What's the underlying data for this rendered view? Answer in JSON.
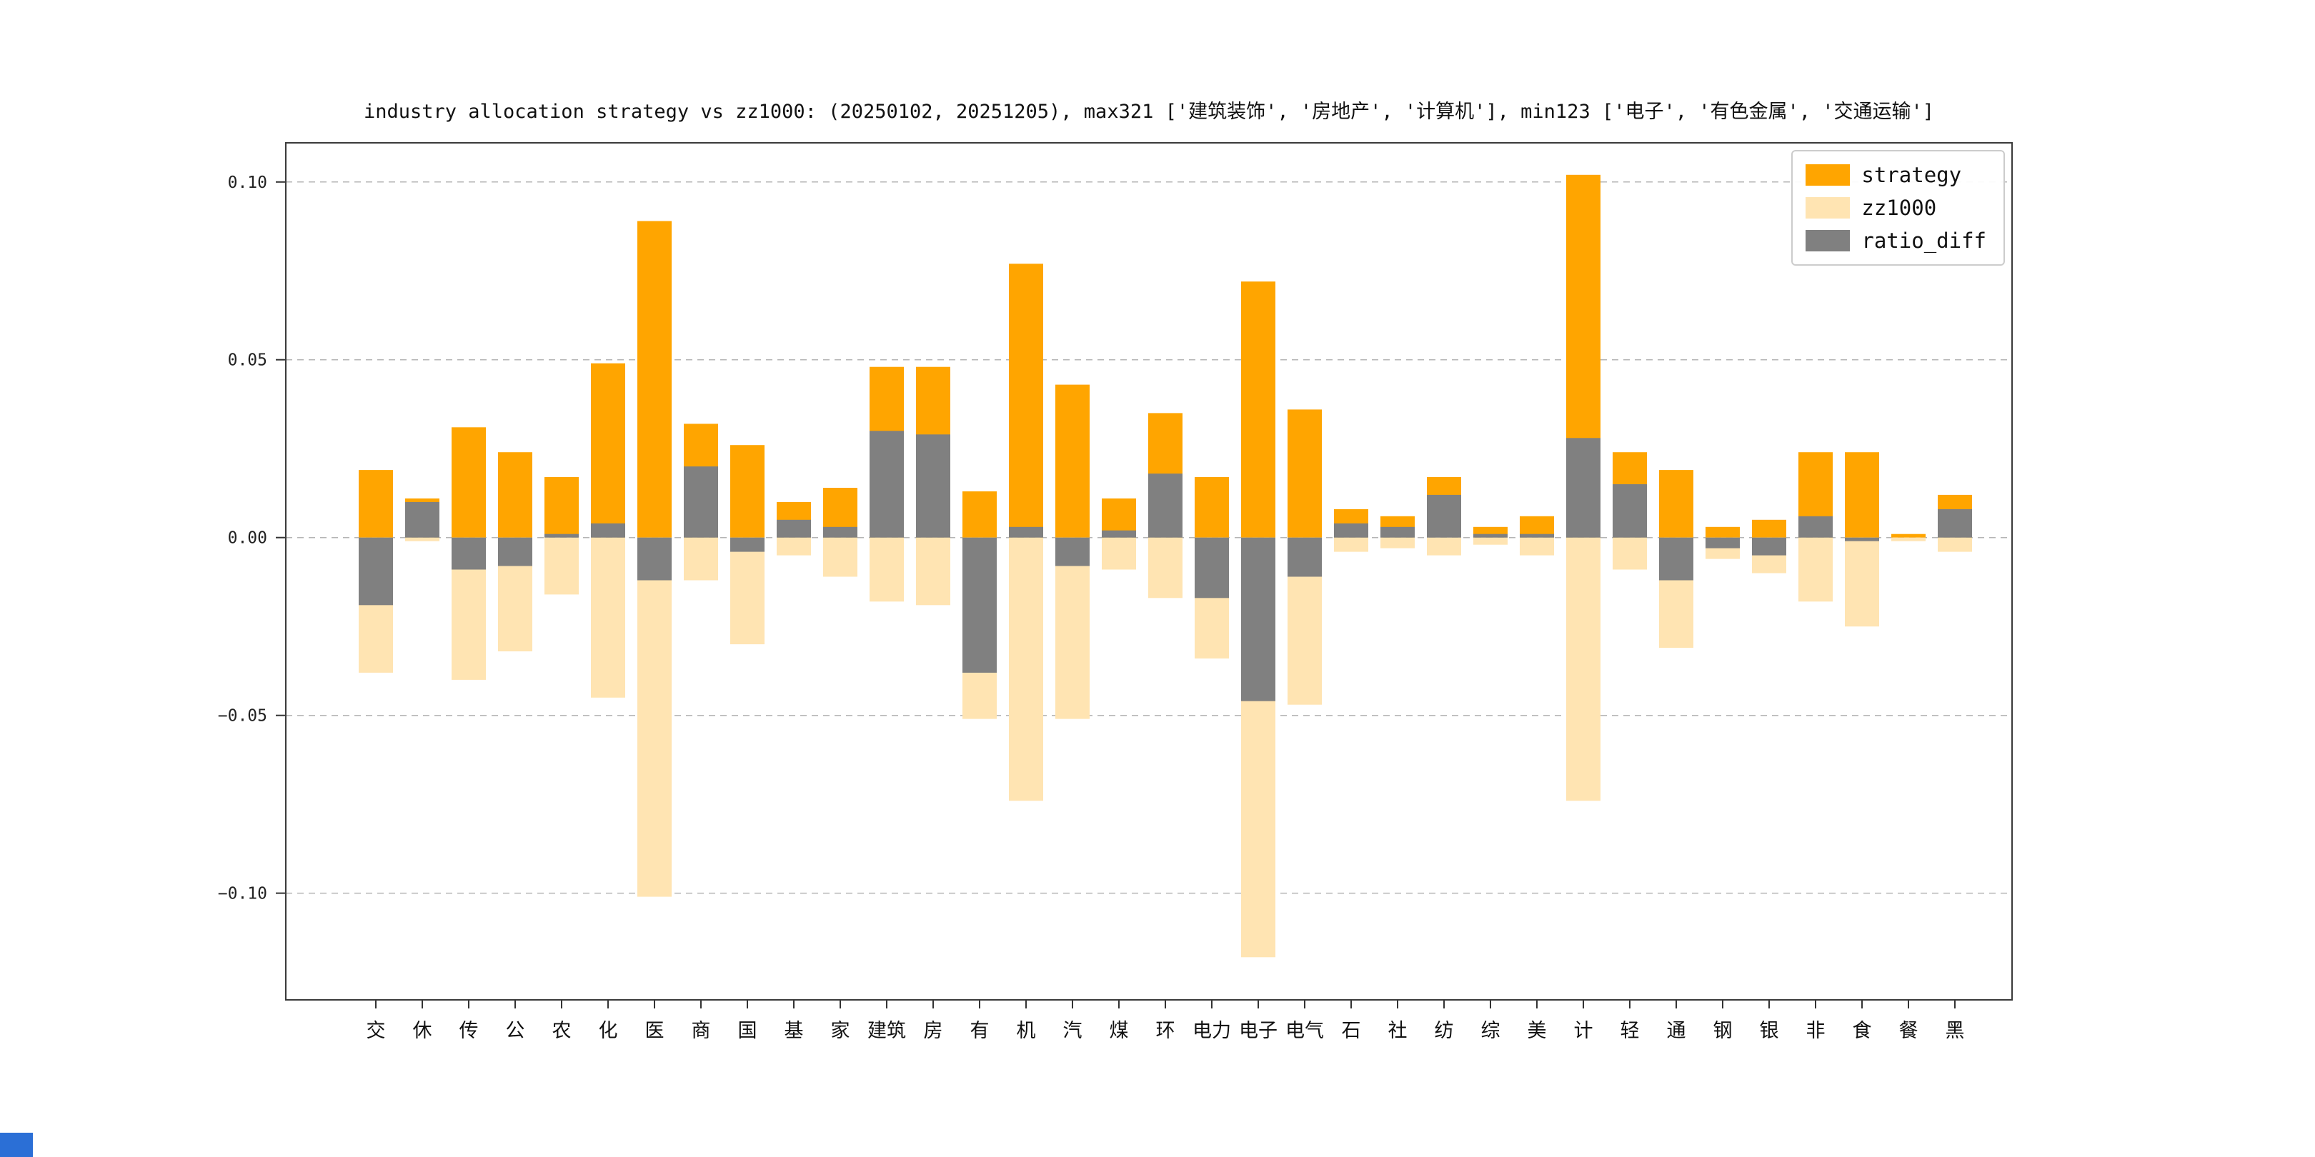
{
  "page": {
    "background": "#ffffff"
  },
  "chart_data": {
    "type": "bar",
    "title": "industry allocation strategy vs zz1000: (20250102, 20251205), max321 ['建筑装饰', '房地产', '计算机'], min123 ['电子', '有色金属', '交通运输']",
    "categories": [
      "交",
      "休",
      "传",
      "公",
      "农",
      "化",
      "医",
      "商",
      "国",
      "基",
      "家",
      "建筑",
      "房",
      "有",
      "机",
      "汽",
      "煤",
      "环",
      "电力",
      "电子",
      "电气",
      "石",
      "社",
      "纺",
      "综",
      "美",
      "计",
      "轻",
      "通",
      "钢",
      "银",
      "非",
      "食",
      "餐",
      "黑"
    ],
    "series": [
      {
        "name": "strategy",
        "color": "#FFA500",
        "values": [
          0.019,
          0.011,
          0.031,
          0.024,
          0.017,
          0.049,
          0.089,
          0.032,
          0.026,
          0.01,
          0.014,
          0.048,
          0.048,
          0.013,
          0.077,
          0.043,
          0.011,
          0.035,
          0.017,
          0.072,
          0.036,
          0.008,
          0.006,
          0.017,
          0.003,
          0.006,
          0.102,
          0.024,
          0.019,
          0.003,
          0.005,
          0.024,
          0.024,
          0.001,
          0.012
        ]
      },
      {
        "name": "zz1000",
        "color": "#FFE4B2",
        "values": [
          -0.038,
          -0.001,
          -0.04,
          -0.032,
          -0.016,
          -0.045,
          -0.101,
          -0.012,
          -0.03,
          -0.005,
          -0.011,
          -0.018,
          -0.019,
          -0.051,
          -0.074,
          -0.051,
          -0.009,
          -0.017,
          -0.034,
          -0.118,
          -0.047,
          -0.004,
          -0.003,
          -0.005,
          -0.002,
          -0.005,
          -0.074,
          -0.009,
          -0.031,
          -0.006,
          -0.01,
          -0.018,
          -0.025,
          -0.001,
          -0.004
        ]
      },
      {
        "name": "ratio_diff",
        "color": "#808080",
        "values": [
          -0.019,
          0.01,
          -0.009,
          -0.008,
          0.001,
          0.004,
          -0.012,
          0.02,
          -0.004,
          0.005,
          0.003,
          0.03,
          0.029,
          -0.038,
          0.003,
          -0.008,
          0.002,
          0.018,
          -0.017,
          -0.046,
          -0.011,
          0.004,
          0.003,
          0.012,
          0.001,
          0.001,
          0.028,
          0.015,
          -0.012,
          -0.003,
          -0.005,
          0.006,
          -0.001,
          0.0,
          0.008
        ]
      }
    ],
    "ylim": [
      -0.13,
      0.111
    ],
    "yticks": [
      0.1,
      0.05,
      0.0,
      -0.05,
      -0.1
    ],
    "grid": "horizontal dashed",
    "legend_position": "upper right",
    "max321": [
      "建筑装饰",
      "房地产",
      "计算机"
    ],
    "min123": [
      "电子",
      "有色金属",
      "交通运输"
    ]
  }
}
